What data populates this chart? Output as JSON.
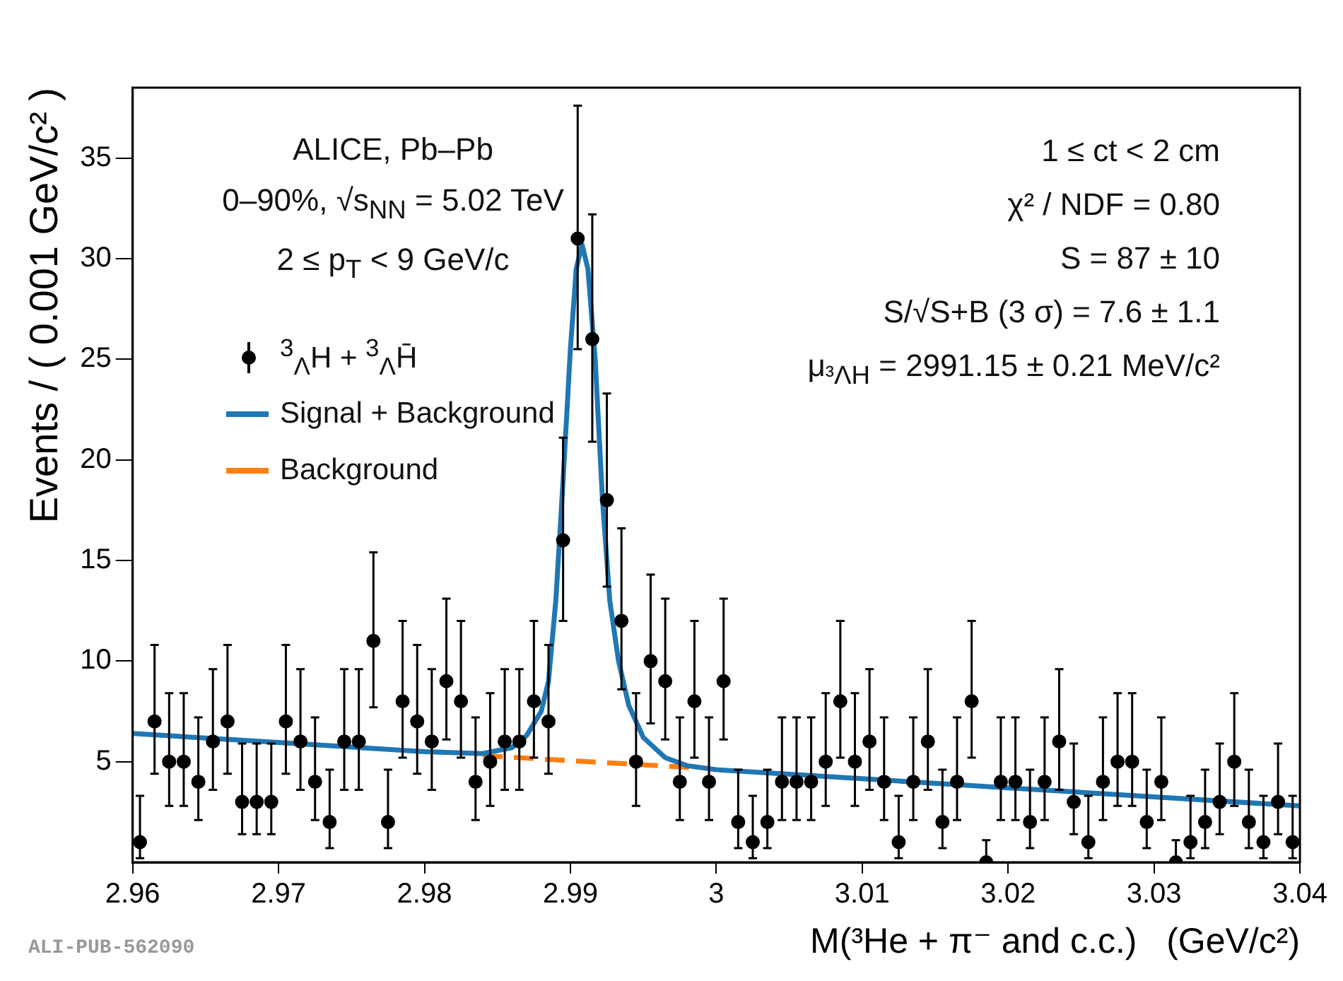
{
  "chart_data": {
    "type": "scatter",
    "xlabel": "M(³He + π⁻ and c.c.)   (GeV/c²)",
    "ylabel": "Events / ( 0.001 GeV/c² )",
    "xlim": [
      2.96,
      3.04
    ],
    "xticks": [
      2.96,
      2.97,
      2.98,
      2.99,
      3,
      3.01,
      3.02,
      3.03,
      3.04
    ],
    "ylim": [
      0,
      38.5
    ],
    "yticks": [
      5,
      10,
      15,
      20,
      25,
      30,
      35
    ],
    "grid": false,
    "legend": "top left",
    "annotations": [
      "ALICE, Pb–Pb",
      "0–90%, √s$_{NN}$ = 5.02 TeV",
      "2 ≤ p$_{T}$ < 9 GeV/c",
      "1 ≤ ct < 2 cm",
      "χ² / NDF = 0.80",
      "S = 87 ± 10",
      "S/√S+B (3 σ) = 7.6 ± 1.1",
      "μ$_{³ΛH}$ = 2991.15 ± 0.21 MeV/c²",
      "ALI-PUB-562090"
    ],
    "series": [
      {
        "name": "$^{3}$$_{Λ}$H + $^{3}$$_{Λ}$H̄",
        "marker": "circle",
        "color": "#000000",
        "x": [
          2.9605,
          2.9615,
          2.9625,
          2.9635,
          2.9645,
          2.9655,
          2.9665,
          2.9675,
          2.9685,
          2.9695,
          2.9705,
          2.9715,
          2.9725,
          2.9735,
          2.9745,
          2.9755,
          2.9765,
          2.9775,
          2.9785,
          2.9795,
          2.9805,
          2.9815,
          2.9825,
          2.9835,
          2.9845,
          2.9855,
          2.9865,
          2.9875,
          2.9885,
          2.9895,
          2.9905,
          2.9915,
          2.9925,
          2.9935,
          2.9945,
          2.9955,
          2.9965,
          2.9975,
          2.9985,
          2.9995,
          3.0005,
          3.0015,
          3.0025,
          3.0035,
          3.0045,
          3.0055,
          3.0065,
          3.0075,
          3.0085,
          3.0095,
          3.0105,
          3.0115,
          3.0125,
          3.0135,
          3.0145,
          3.0155,
          3.0165,
          3.0175,
          3.0185,
          3.0195,
          3.0205,
          3.0215,
          3.0225,
          3.0235,
          3.0245,
          3.0255,
          3.0265,
          3.0275,
          3.0285,
          3.0295,
          3.0305,
          3.0315,
          3.0325,
          3.0335,
          3.0345,
          3.0355,
          3.0365,
          3.0375,
          3.0385,
          3.0395
        ],
        "values": [
          1,
          7,
          5,
          5,
          4,
          6,
          7,
          3,
          3,
          3,
          7,
          6,
          4,
          2,
          6,
          6,
          11,
          2,
          8,
          7,
          6,
          9,
          8,
          4,
          5,
          6,
          6,
          8,
          7,
          16,
          31,
          26,
          18,
          12,
          5,
          10,
          9,
          4,
          8,
          4,
          9,
          2,
          1,
          2,
          4,
          4,
          4,
          5,
          8,
          5,
          6,
          4,
          1,
          4,
          6,
          2,
          4,
          8,
          0,
          4,
          4,
          2,
          4,
          6,
          3,
          1,
          4,
          5,
          5,
          2,
          4,
          0,
          1,
          2,
          3,
          5,
          2,
          1,
          3,
          1
        ],
        "errors": [
          [
            0.2,
            3.3
          ],
          [
            4.4,
            10.8
          ],
          [
            2.8,
            8.4
          ],
          [
            2.8,
            8.4
          ],
          [
            2.1,
            7.2
          ],
          [
            3.6,
            9.6
          ],
          [
            4.4,
            10.8
          ],
          [
            1.4,
            5.9
          ],
          [
            1.4,
            5.9
          ],
          [
            1.4,
            5.9
          ],
          [
            4.4,
            10.8
          ],
          [
            3.6,
            9.6
          ],
          [
            2.1,
            7.2
          ],
          [
            0.7,
            4.6
          ],
          [
            3.6,
            9.6
          ],
          [
            3.6,
            9.6
          ],
          [
            7.7,
            15.4
          ],
          [
            0.7,
            4.6
          ],
          [
            5.2,
            12.0
          ],
          [
            4.4,
            10.8
          ],
          [
            3.6,
            9.6
          ],
          [
            6.1,
            13.1
          ],
          [
            5.2,
            12.0
          ],
          [
            2.1,
            7.2
          ],
          [
            2.8,
            8.4
          ],
          [
            3.6,
            9.6
          ],
          [
            3.6,
            9.6
          ],
          [
            5.2,
            12.0
          ],
          [
            4.4,
            10.8
          ],
          [
            12.0,
            21.1
          ],
          [
            25.5,
            37.6
          ],
          [
            20.9,
            32.2
          ],
          [
            13.7,
            23.3
          ],
          [
            8.6,
            16.6
          ],
          [
            2.8,
            8.4
          ],
          [
            6.9,
            14.3
          ],
          [
            6.1,
            13.1
          ],
          [
            2.1,
            7.2
          ],
          [
            5.2,
            12.0
          ],
          [
            2.1,
            7.2
          ],
          [
            6.1,
            13.1
          ],
          [
            0.7,
            4.6
          ],
          [
            0.2,
            3.3
          ],
          [
            0.7,
            4.6
          ],
          [
            2.1,
            7.2
          ],
          [
            2.1,
            7.2
          ],
          [
            2.1,
            7.2
          ],
          [
            2.8,
            8.4
          ],
          [
            5.2,
            12.0
          ],
          [
            2.8,
            8.4
          ],
          [
            3.6,
            9.6
          ],
          [
            2.1,
            7.2
          ],
          [
            0.2,
            3.3
          ],
          [
            2.1,
            7.2
          ],
          [
            3.6,
            9.6
          ],
          [
            0.7,
            4.6
          ],
          [
            2.1,
            7.2
          ],
          [
            5.2,
            12.0
          ],
          [
            0,
            1.1
          ],
          [
            2.1,
            7.2
          ],
          [
            2.1,
            7.2
          ],
          [
            0.7,
            4.6
          ],
          [
            2.1,
            7.2
          ],
          [
            3.6,
            9.6
          ],
          [
            1.4,
            5.9
          ],
          [
            0.2,
            3.3
          ],
          [
            2.1,
            7.2
          ],
          [
            2.8,
            8.4
          ],
          [
            2.8,
            8.4
          ],
          [
            0.7,
            4.6
          ],
          [
            2.1,
            7.2
          ],
          [
            0,
            1.1
          ],
          [
            0.2,
            3.3
          ],
          [
            0.7,
            4.6
          ],
          [
            1.4,
            5.9
          ],
          [
            2.8,
            8.4
          ],
          [
            0.7,
            4.6
          ],
          [
            0.2,
            3.3
          ],
          [
            1.4,
            5.9
          ],
          [
            0.2,
            3.3
          ]
        ]
      },
      {
        "name": "Signal + Background",
        "type": "line",
        "color": "#1f77b4",
        "x": [
          2.96,
          2.97,
          2.98,
          2.984,
          2.986,
          2.987,
          2.988,
          2.9885,
          2.989,
          2.9895,
          2.99,
          2.9904,
          2.9908,
          2.9912,
          2.9917,
          2.9922,
          2.9927,
          2.9933,
          2.994,
          2.995,
          2.9965,
          2.998,
          3,
          3.01,
          3.02,
          3.03,
          3.04
        ],
        "values": [
          6.4,
          5.95,
          5.5,
          5.4,
          5.7,
          6.3,
          7.5,
          9,
          13,
          19,
          25.5,
          29.5,
          30.7,
          29.5,
          25,
          18,
          13,
          10,
          7.8,
          6.2,
          5.2,
          4.8,
          4.6,
          4.15,
          3.7,
          3.25,
          2.8
        ]
      },
      {
        "name": "Background",
        "type": "line",
        "color": "#ff7f0e",
        "line_style": "dashed",
        "x": [
          2.984,
          2.9985
        ],
        "values": [
          5.3,
          4.7
        ]
      }
    ]
  }
}
